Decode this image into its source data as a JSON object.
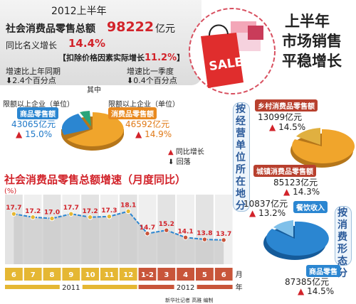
{
  "headline": {
    "line1": "上半年",
    "line2": "市场销售",
    "line3": "平稳增长"
  },
  "summary": {
    "period": "2012上半年",
    "total_label": "社会消费品零售总额",
    "total_value": "98222",
    "total_unit": "亿元",
    "nominal_label": "同比名义增长",
    "nominal_value": "14.4%",
    "real_label": "扣除价格因素实际增长",
    "real_value": "11.2%",
    "yoy_label": "增速比上年同期",
    "yoy_value": "2.4个百分点",
    "qoq_label": "增速比一季度",
    "qoq_value": "0.4个百分点",
    "of_which": "其中"
  },
  "left_pie": {
    "left_caption": "限额以上企业（单位）",
    "left_tag": "商品零售额",
    "left_value": "43065亿元",
    "left_rate": "15.0%",
    "right_caption": "限额以上企业（单位）",
    "right_tag": "消费品零售额",
    "right_value": "46592亿元",
    "right_rate": "14.9%"
  },
  "legend": {
    "up": "同比增长",
    "down": "回落"
  },
  "right_panel": {
    "top_vertical": "按经营单位所在地分",
    "rural_tag": "乡村消费品零售额",
    "rural_value": "13099亿元",
    "rural_rate": "14.5%",
    "urban_tag": "城镇消费品零售额",
    "urban_value": "85123亿元",
    "urban_rate": "14.3%",
    "bottom_vertical": "按消费形态分",
    "catering_value": "10837亿元",
    "catering_rate": "13.2%",
    "catering_tag": "餐饮收入",
    "goods_tag": "商品零售",
    "goods_value": "87385亿元",
    "goods_rate": "14.5%"
  },
  "credit": "新华社记者 高雅 编制",
  "chart_data": {
    "type": "area",
    "title": "社会消费品零售总额增速（月度同比）",
    "ylabel": "(%)",
    "xlabel": "月",
    "categories": [
      "6",
      "7",
      "8",
      "9",
      "10",
      "11",
      "12",
      "1-2",
      "3",
      "4",
      "5",
      "6"
    ],
    "values": [
      17.7,
      17.2,
      17.0,
      17.7,
      17.2,
      17.3,
      18.1,
      14.7,
      15.2,
      14.1,
      13.8,
      13.7
    ],
    "value_labels": [
      "17.7",
      "17.2",
      "17.0",
      "17.7",
      "17.2",
      "17.3",
      "18.1",
      "14.7",
      "15.2",
      "14.1",
      "13.8",
      "13.7"
    ],
    "year_groups": [
      {
        "label": "2011",
        "from": 0,
        "to": 6
      },
      {
        "label": "2012",
        "from": 7,
        "to": 11
      }
    ],
    "year_unit": "年",
    "colors": {
      "y2011": "#e5b733",
      "y2012": "#c8553a",
      "line": "#2b86d1"
    }
  }
}
